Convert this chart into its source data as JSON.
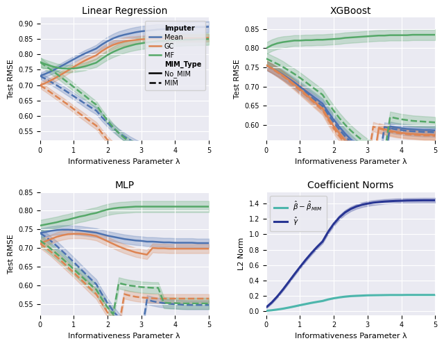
{
  "title_lr": "Linear Regression",
  "title_xgb": "XGBoost",
  "title_mlp": "MLP",
  "title_coef": "Coefficient Norms",
  "xlabel": "Informativeness Parameter λ",
  "ylabel_rmse": "Test RMSE",
  "ylabel_coef": "L2 Norm",
  "colors": {
    "Mean": "#4c72b0",
    "GC": "#dd8452",
    "MF": "#55a868"
  },
  "color_coef_cyan": "#4db6ac",
  "color_coef_navy": "#283593",
  "bg_color": "#eaeaf2",
  "alpha_fill": 0.25,
  "lw": 1.8,
  "lr": {
    "ylim": [
      0.52,
      0.92
    ],
    "yticks": [
      0.55,
      0.6,
      0.65,
      0.7,
      0.75,
      0.8,
      0.85,
      0.9
    ],
    "Mean_NoMIM": [
      0.73,
      0.737,
      0.745,
      0.754,
      0.764,
      0.774,
      0.784,
      0.794,
      0.803,
      0.811,
      0.819,
      0.832,
      0.843,
      0.852,
      0.859,
      0.864,
      0.868,
      0.872,
      0.875,
      0.877,
      0.879,
      0.881,
      0.882,
      0.884,
      0.885,
      0.886,
      0.887,
      0.888,
      0.889,
      0.889,
      0.89
    ],
    "Mean_MIM": [
      0.73,
      0.72,
      0.71,
      0.699,
      0.688,
      0.676,
      0.664,
      0.652,
      0.64,
      0.628,
      0.617,
      0.596,
      0.577,
      0.56,
      0.545,
      0.532,
      0.521,
      0.511,
      0.503,
      0.496,
      0.49,
      0.485,
      0.481,
      0.477,
      0.474,
      0.471,
      0.469,
      0.467,
      0.466,
      0.465,
      0.464
    ],
    "Mean_NoMIM_std": [
      0.01,
      0.01,
      0.01,
      0.01,
      0.01,
      0.01,
      0.01,
      0.01,
      0.011,
      0.011,
      0.012,
      0.013,
      0.014,
      0.015,
      0.016,
      0.016,
      0.017,
      0.017,
      0.017,
      0.017,
      0.017,
      0.018,
      0.018,
      0.018,
      0.018,
      0.018,
      0.018,
      0.018,
      0.018,
      0.018,
      0.018
    ],
    "Mean_MIM_std": [
      0.01,
      0.01,
      0.01,
      0.01,
      0.011,
      0.011,
      0.011,
      0.011,
      0.012,
      0.012,
      0.012,
      0.013,
      0.013,
      0.013,
      0.013,
      0.013,
      0.012,
      0.012,
      0.012,
      0.011,
      0.011,
      0.011,
      0.011,
      0.01,
      0.01,
      0.01,
      0.01,
      0.01,
      0.01,
      0.01,
      0.01
    ],
    "GC_NoMIM": [
      0.7,
      0.707,
      0.716,
      0.726,
      0.737,
      0.748,
      0.759,
      0.77,
      0.78,
      0.789,
      0.797,
      0.811,
      0.822,
      0.831,
      0.837,
      0.842,
      0.845,
      0.847,
      0.849,
      0.85,
      0.851,
      0.851,
      0.852,
      0.852,
      0.853,
      0.853,
      0.853,
      0.853,
      0.853,
      0.853,
      0.854
    ],
    "GC_MIM": [
      0.7,
      0.688,
      0.675,
      0.662,
      0.649,
      0.636,
      0.622,
      0.608,
      0.595,
      0.581,
      0.568,
      0.544,
      0.522,
      0.503,
      0.486,
      0.471,
      0.458,
      0.447,
      0.438,
      0.43,
      0.424,
      0.418,
      0.414,
      0.41,
      0.407,
      0.404,
      0.402,
      0.401,
      0.4,
      0.399,
      0.398
    ],
    "GC_NoMIM_std": [
      0.01,
      0.01,
      0.01,
      0.01,
      0.011,
      0.011,
      0.012,
      0.012,
      0.013,
      0.013,
      0.013,
      0.014,
      0.014,
      0.014,
      0.013,
      0.013,
      0.013,
      0.012,
      0.012,
      0.012,
      0.012,
      0.012,
      0.012,
      0.012,
      0.012,
      0.012,
      0.012,
      0.012,
      0.012,
      0.012,
      0.012
    ],
    "GC_MIM_std": [
      0.01,
      0.01,
      0.01,
      0.01,
      0.011,
      0.011,
      0.011,
      0.012,
      0.012,
      0.012,
      0.012,
      0.012,
      0.012,
      0.012,
      0.012,
      0.011,
      0.011,
      0.011,
      0.011,
      0.01,
      0.01,
      0.01,
      0.01,
      0.01,
      0.01,
      0.01,
      0.01,
      0.01,
      0.01,
      0.01,
      0.01
    ],
    "MF_NoMIM": [
      0.775,
      0.768,
      0.762,
      0.757,
      0.754,
      0.753,
      0.754,
      0.757,
      0.761,
      0.767,
      0.773,
      0.786,
      0.798,
      0.808,
      0.816,
      0.823,
      0.828,
      0.833,
      0.836,
      0.839,
      0.841,
      0.843,
      0.844,
      0.845,
      0.846,
      0.847,
      0.848,
      0.848,
      0.849,
      0.849,
      0.85
    ],
    "MF_MIM": [
      0.775,
      0.762,
      0.749,
      0.736,
      0.722,
      0.708,
      0.694,
      0.679,
      0.665,
      0.65,
      0.636,
      0.609,
      0.585,
      0.563,
      0.544,
      0.528,
      0.514,
      0.502,
      0.492,
      0.483,
      0.476,
      0.47,
      0.465,
      0.461,
      0.458,
      0.455,
      0.453,
      0.452,
      0.451,
      0.45,
      0.449
    ],
    "MF_NoMIM_std": [
      0.015,
      0.014,
      0.014,
      0.013,
      0.013,
      0.012,
      0.012,
      0.012,
      0.013,
      0.013,
      0.014,
      0.015,
      0.016,
      0.017,
      0.018,
      0.018,
      0.018,
      0.019,
      0.019,
      0.019,
      0.019,
      0.019,
      0.019,
      0.019,
      0.019,
      0.019,
      0.019,
      0.019,
      0.019,
      0.019,
      0.019
    ],
    "MF_MIM_std": [
      0.015,
      0.014,
      0.014,
      0.013,
      0.013,
      0.013,
      0.013,
      0.012,
      0.012,
      0.012,
      0.012,
      0.012,
      0.012,
      0.012,
      0.012,
      0.011,
      0.011,
      0.011,
      0.011,
      0.011,
      0.011,
      0.011,
      0.011,
      0.011,
      0.011,
      0.011,
      0.011,
      0.011,
      0.011,
      0.011,
      0.011
    ]
  },
  "xgb": {
    "ylim": [
      0.56,
      0.88
    ],
    "yticks": [
      0.6,
      0.65,
      0.7,
      0.75,
      0.8,
      0.85
    ],
    "Mean_NoMIM": [
      0.755,
      0.748,
      0.74,
      0.731,
      0.721,
      0.711,
      0.7,
      0.689,
      0.678,
      0.667,
      0.656,
      0.634,
      0.614,
      0.595,
      0.578,
      0.563,
      0.549,
      0.537,
      0.527,
      0.518,
      0.51,
      0.503,
      0.597,
      0.594,
      0.592,
      0.59,
      0.589,
      0.588,
      0.587,
      0.587,
      0.586
    ],
    "Mean_MIM": [
      0.755,
      0.747,
      0.738,
      0.728,
      0.718,
      0.707,
      0.695,
      0.684,
      0.672,
      0.661,
      0.649,
      0.627,
      0.607,
      0.588,
      0.571,
      0.556,
      0.542,
      0.53,
      0.519,
      0.51,
      0.502,
      0.595,
      0.592,
      0.589,
      0.587,
      0.585,
      0.584,
      0.583,
      0.582,
      0.582,
      0.581
    ],
    "Mean_NoMIM_std": [
      0.012,
      0.012,
      0.012,
      0.012,
      0.012,
      0.012,
      0.013,
      0.013,
      0.013,
      0.013,
      0.013,
      0.014,
      0.014,
      0.014,
      0.013,
      0.013,
      0.013,
      0.012,
      0.012,
      0.012,
      0.012,
      0.012,
      0.012,
      0.012,
      0.012,
      0.012,
      0.012,
      0.012,
      0.012,
      0.012,
      0.012
    ],
    "Mean_MIM_std": [
      0.012,
      0.012,
      0.012,
      0.012,
      0.012,
      0.012,
      0.013,
      0.013,
      0.013,
      0.013,
      0.013,
      0.014,
      0.014,
      0.013,
      0.013,
      0.013,
      0.012,
      0.012,
      0.012,
      0.012,
      0.012,
      0.012,
      0.012,
      0.012,
      0.012,
      0.012,
      0.012,
      0.012,
      0.012,
      0.012,
      0.012
    ],
    "GC_NoMIM": [
      0.756,
      0.748,
      0.739,
      0.729,
      0.718,
      0.706,
      0.694,
      0.681,
      0.668,
      0.655,
      0.643,
      0.619,
      0.597,
      0.578,
      0.56,
      0.545,
      0.531,
      0.519,
      0.509,
      0.5,
      0.593,
      0.589,
      0.585,
      0.582,
      0.58,
      0.578,
      0.577,
      0.576,
      0.575,
      0.575,
      0.574
    ],
    "GC_MIM": [
      0.756,
      0.747,
      0.737,
      0.727,
      0.715,
      0.703,
      0.691,
      0.678,
      0.665,
      0.652,
      0.639,
      0.614,
      0.591,
      0.571,
      0.553,
      0.538,
      0.524,
      0.512,
      0.502,
      0.596,
      0.591,
      0.587,
      0.583,
      0.58,
      0.578,
      0.576,
      0.575,
      0.574,
      0.573,
      0.573,
      0.572
    ],
    "GC_NoMIM_std": [
      0.012,
      0.012,
      0.012,
      0.012,
      0.012,
      0.012,
      0.013,
      0.013,
      0.013,
      0.013,
      0.013,
      0.014,
      0.014,
      0.013,
      0.013,
      0.013,
      0.012,
      0.012,
      0.012,
      0.012,
      0.012,
      0.012,
      0.012,
      0.012,
      0.012,
      0.012,
      0.012,
      0.012,
      0.012,
      0.012,
      0.012
    ],
    "GC_MIM_std": [
      0.012,
      0.012,
      0.012,
      0.012,
      0.012,
      0.012,
      0.013,
      0.013,
      0.013,
      0.013,
      0.013,
      0.014,
      0.014,
      0.013,
      0.013,
      0.013,
      0.012,
      0.012,
      0.012,
      0.012,
      0.012,
      0.012,
      0.012,
      0.012,
      0.012,
      0.012,
      0.012,
      0.012,
      0.012,
      0.012,
      0.012
    ],
    "MF_NoMIM": [
      0.8,
      0.808,
      0.813,
      0.816,
      0.818,
      0.82,
      0.82,
      0.821,
      0.821,
      0.822,
      0.822,
      0.823,
      0.824,
      0.825,
      0.827,
      0.828,
      0.829,
      0.83,
      0.831,
      0.832,
      0.833,
      0.833,
      0.834,
      0.834,
      0.834,
      0.834,
      0.835,
      0.835,
      0.835,
      0.835,
      0.835
    ],
    "MF_MIM": [
      0.773,
      0.766,
      0.759,
      0.751,
      0.742,
      0.733,
      0.723,
      0.712,
      0.701,
      0.69,
      0.679,
      0.657,
      0.637,
      0.618,
      0.601,
      0.586,
      0.573,
      0.561,
      0.55,
      0.541,
      0.533,
      0.526,
      0.621,
      0.618,
      0.615,
      0.613,
      0.611,
      0.61,
      0.609,
      0.608,
      0.607
    ],
    "MF_NoMIM_std": [
      0.015,
      0.015,
      0.015,
      0.015,
      0.014,
      0.014,
      0.014,
      0.014,
      0.014,
      0.014,
      0.014,
      0.014,
      0.014,
      0.014,
      0.014,
      0.014,
      0.014,
      0.014,
      0.014,
      0.014,
      0.014,
      0.014,
      0.014,
      0.014,
      0.014,
      0.014,
      0.014,
      0.014,
      0.014,
      0.014,
      0.014
    ],
    "MF_MIM_std": [
      0.015,
      0.015,
      0.015,
      0.015,
      0.014,
      0.014,
      0.014,
      0.014,
      0.014,
      0.014,
      0.014,
      0.014,
      0.014,
      0.014,
      0.014,
      0.014,
      0.014,
      0.014,
      0.014,
      0.014,
      0.014,
      0.014,
      0.014,
      0.014,
      0.014,
      0.014,
      0.014,
      0.014,
      0.014,
      0.014,
      0.014
    ]
  },
  "mlp": {
    "ylim": [
      0.52,
      0.85
    ],
    "yticks": [
      0.55,
      0.6,
      0.65,
      0.7,
      0.75,
      0.8
    ],
    "Mean_NoMIM": [
      0.74,
      0.743,
      0.746,
      0.748,
      0.749,
      0.749,
      0.748,
      0.747,
      0.745,
      0.743,
      0.741,
      0.737,
      0.733,
      0.73,
      0.727,
      0.724,
      0.722,
      0.72,
      0.719,
      0.717,
      0.717,
      0.716,
      0.715,
      0.715,
      0.714,
      0.714,
      0.714,
      0.714,
      0.713,
      0.713,
      0.713
    ],
    "Mean_MIM": [
      0.74,
      0.73,
      0.718,
      0.705,
      0.691,
      0.677,
      0.662,
      0.647,
      0.632,
      0.617,
      0.603,
      0.576,
      0.552,
      0.531,
      0.513,
      0.498,
      0.485,
      0.475,
      0.467,
      0.561,
      0.557,
      0.554,
      0.552,
      0.55,
      0.549,
      0.548,
      0.547,
      0.547,
      0.547,
      0.547,
      0.547
    ],
    "Mean_NoMIM_std": [
      0.012,
      0.012,
      0.012,
      0.012,
      0.012,
      0.012,
      0.012,
      0.012,
      0.012,
      0.012,
      0.012,
      0.012,
      0.012,
      0.012,
      0.012,
      0.012,
      0.012,
      0.012,
      0.012,
      0.012,
      0.012,
      0.012,
      0.012,
      0.012,
      0.012,
      0.012,
      0.012,
      0.012,
      0.012,
      0.012,
      0.012
    ],
    "Mean_MIM_std": [
      0.012,
      0.012,
      0.012,
      0.013,
      0.013,
      0.013,
      0.013,
      0.013,
      0.013,
      0.013,
      0.013,
      0.013,
      0.013,
      0.013,
      0.012,
      0.012,
      0.012,
      0.012,
      0.012,
      0.012,
      0.012,
      0.012,
      0.012,
      0.012,
      0.012,
      0.012,
      0.012,
      0.012,
      0.012,
      0.012,
      0.012
    ],
    "GC_NoMIM": [
      0.712,
      0.718,
      0.724,
      0.73,
      0.734,
      0.737,
      0.738,
      0.738,
      0.737,
      0.735,
      0.732,
      0.725,
      0.718,
      0.711,
      0.704,
      0.698,
      0.693,
      0.688,
      0.685,
      0.682,
      0.7,
      0.699,
      0.699,
      0.698,
      0.698,
      0.698,
      0.698,
      0.698,
      0.698,
      0.698,
      0.698
    ],
    "GC_MIM": [
      0.712,
      0.701,
      0.689,
      0.676,
      0.662,
      0.648,
      0.634,
      0.619,
      0.605,
      0.59,
      0.576,
      0.551,
      0.527,
      0.507,
      0.49,
      0.576,
      0.572,
      0.569,
      0.567,
      0.566,
      0.565,
      0.564,
      0.564,
      0.564,
      0.564,
      0.564,
      0.564,
      0.564,
      0.564,
      0.564,
      0.564
    ],
    "GC_NoMIM_std": [
      0.012,
      0.012,
      0.012,
      0.012,
      0.012,
      0.012,
      0.012,
      0.012,
      0.012,
      0.012,
      0.012,
      0.012,
      0.012,
      0.012,
      0.012,
      0.012,
      0.012,
      0.012,
      0.012,
      0.012,
      0.012,
      0.012,
      0.012,
      0.012,
      0.012,
      0.012,
      0.012,
      0.012,
      0.012,
      0.012,
      0.012
    ],
    "GC_MIM_std": [
      0.012,
      0.012,
      0.012,
      0.013,
      0.013,
      0.013,
      0.013,
      0.013,
      0.013,
      0.013,
      0.013,
      0.013,
      0.013,
      0.013,
      0.012,
      0.012,
      0.012,
      0.012,
      0.012,
      0.012,
      0.012,
      0.012,
      0.012,
      0.012,
      0.012,
      0.012,
      0.012,
      0.012,
      0.012,
      0.012,
      0.012
    ],
    "MF_NoMIM": [
      0.76,
      0.763,
      0.766,
      0.769,
      0.773,
      0.776,
      0.78,
      0.784,
      0.787,
      0.791,
      0.794,
      0.799,
      0.803,
      0.806,
      0.808,
      0.809,
      0.81,
      0.811,
      0.811,
      0.811,
      0.811,
      0.811,
      0.811,
      0.811,
      0.811,
      0.811,
      0.811,
      0.811,
      0.811,
      0.811,
      0.811
    ],
    "MF_MIM": [
      0.72,
      0.709,
      0.697,
      0.684,
      0.671,
      0.657,
      0.643,
      0.629,
      0.615,
      0.601,
      0.588,
      0.563,
      0.541,
      0.522,
      0.606,
      0.602,
      0.599,
      0.597,
      0.595,
      0.594,
      0.593,
      0.593,
      0.553,
      0.552,
      0.552,
      0.551,
      0.551,
      0.551,
      0.551,
      0.551,
      0.551
    ],
    "MF_NoMIM_std": [
      0.015,
      0.015,
      0.015,
      0.015,
      0.015,
      0.015,
      0.015,
      0.015,
      0.015,
      0.015,
      0.015,
      0.015,
      0.015,
      0.015,
      0.015,
      0.015,
      0.015,
      0.015,
      0.015,
      0.015,
      0.015,
      0.015,
      0.015,
      0.015,
      0.015,
      0.015,
      0.015,
      0.015,
      0.015,
      0.015,
      0.015
    ],
    "MF_MIM_std": [
      0.015,
      0.015,
      0.015,
      0.015,
      0.015,
      0.015,
      0.015,
      0.015,
      0.015,
      0.015,
      0.015,
      0.015,
      0.015,
      0.015,
      0.015,
      0.015,
      0.015,
      0.015,
      0.015,
      0.015,
      0.015,
      0.015,
      0.015,
      0.015,
      0.015,
      0.015,
      0.015,
      0.015,
      0.015,
      0.015,
      0.015
    ]
  },
  "coef": {
    "ylim": [
      -0.05,
      1.55
    ],
    "yticks": [
      0.0,
      0.2,
      0.4,
      0.6,
      0.8,
      1.0,
      1.2,
      1.4
    ],
    "gamma_hat": [
      0.05,
      0.115,
      0.195,
      0.285,
      0.382,
      0.48,
      0.575,
      0.667,
      0.753,
      0.833,
      0.906,
      1.033,
      1.137,
      1.221,
      1.285,
      1.33,
      1.362,
      1.385,
      1.4,
      1.412,
      1.42,
      1.427,
      1.431,
      1.435,
      1.437,
      1.44,
      1.441,
      1.442,
      1.443,
      1.443,
      1.443
    ],
    "gamma_hat_std": [
      0.015,
      0.016,
      0.017,
      0.018,
      0.019,
      0.02,
      0.021,
      0.022,
      0.023,
      0.024,
      0.025,
      0.027,
      0.028,
      0.029,
      0.03,
      0.03,
      0.03,
      0.031,
      0.031,
      0.031,
      0.031,
      0.031,
      0.031,
      0.031,
      0.031,
      0.031,
      0.031,
      0.031,
      0.031,
      0.031,
      0.031
    ],
    "beta_diff": [
      0.005,
      0.012,
      0.022,
      0.033,
      0.047,
      0.062,
      0.078,
      0.093,
      0.108,
      0.121,
      0.133,
      0.153,
      0.168,
      0.18,
      0.189,
      0.196,
      0.2,
      0.203,
      0.206,
      0.207,
      0.208,
      0.209,
      0.21,
      0.21,
      0.21,
      0.211,
      0.211,
      0.211,
      0.211,
      0.211,
      0.211
    ],
    "beta_diff_std": [
      0.003,
      0.003,
      0.003,
      0.004,
      0.004,
      0.004,
      0.005,
      0.005,
      0.005,
      0.005,
      0.005,
      0.005,
      0.005,
      0.005,
      0.005,
      0.005,
      0.005,
      0.005,
      0.005,
      0.005,
      0.005,
      0.005,
      0.005,
      0.005,
      0.005,
      0.005,
      0.005,
      0.005,
      0.005,
      0.005,
      0.005
    ]
  }
}
